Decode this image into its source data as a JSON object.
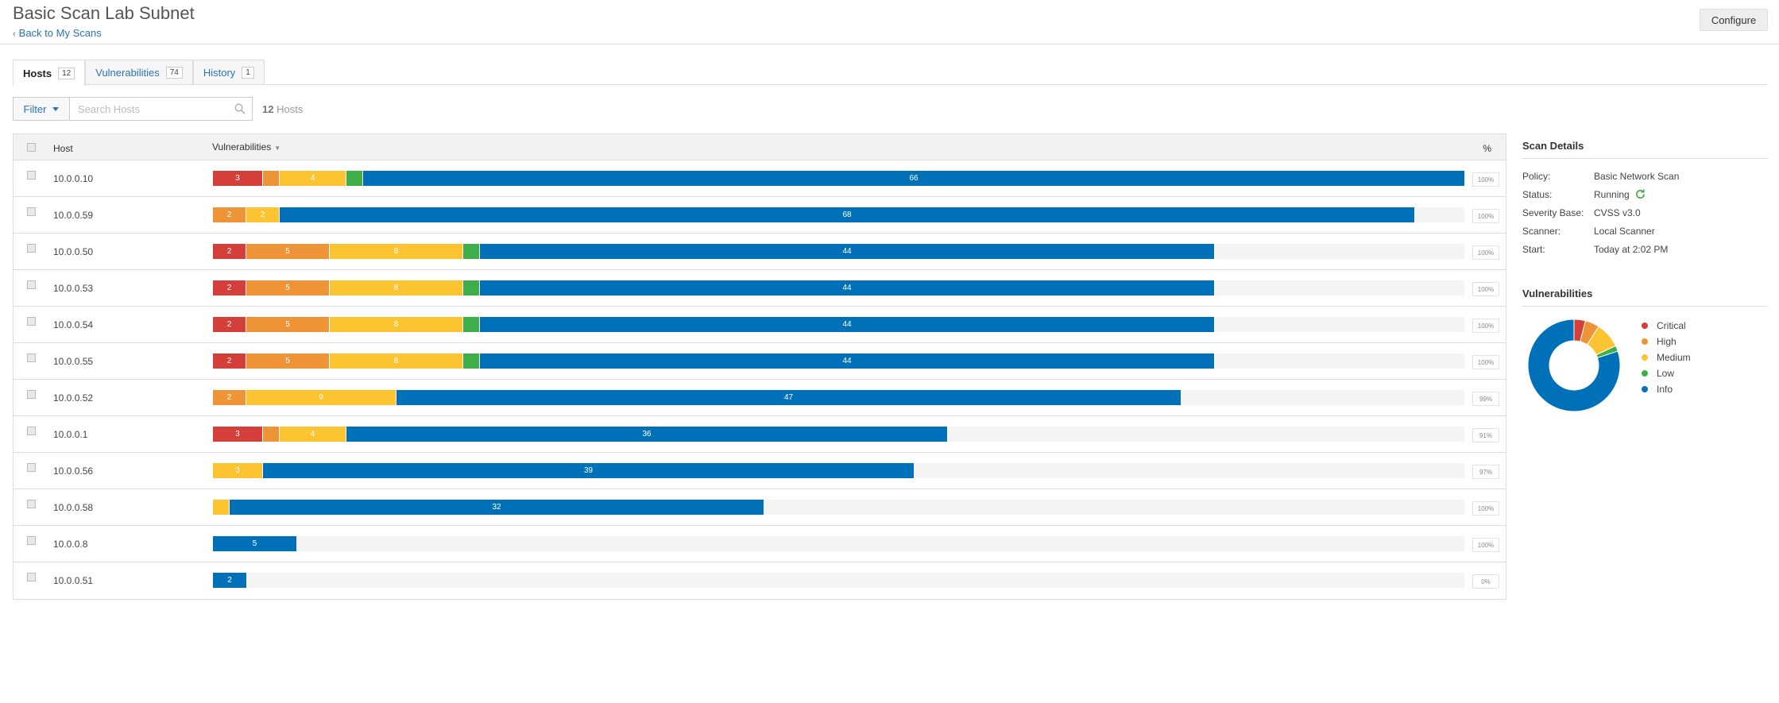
{
  "header": {
    "title": "Basic Scan Lab Subnet",
    "back_label": "Back to My Scans",
    "configure_label": "Configure"
  },
  "tabs": [
    {
      "label": "Hosts",
      "count": "12"
    },
    {
      "label": "Vulnerabilities",
      "count": "74"
    },
    {
      "label": "History",
      "count": "1"
    }
  ],
  "filter": {
    "button_label": "Filter",
    "search_placeholder": "Search Hosts",
    "count_number": "12",
    "count_label": "Hosts"
  },
  "table": {
    "col_host": "Host",
    "col_vulnerabilities": "Vulnerabilities",
    "col_pct": "%",
    "rows": [
      {
        "host": "10.0.0.10",
        "pct": "100%",
        "segments": [
          {
            "sev": "critical",
            "value": 3,
            "label": "3"
          },
          {
            "sev": "high",
            "value": 1,
            "label": ""
          },
          {
            "sev": "medium",
            "value": 4,
            "label": "4"
          },
          {
            "sev": "low",
            "value": 1,
            "label": ""
          },
          {
            "sev": "info",
            "value": 66,
            "label": "66"
          }
        ]
      },
      {
        "host": "10.0.0.59",
        "pct": "100%",
        "segments": [
          {
            "sev": "high",
            "value": 2,
            "label": "2"
          },
          {
            "sev": "medium",
            "value": 2,
            "label": "2"
          },
          {
            "sev": "info",
            "value": 68,
            "label": "68"
          }
        ]
      },
      {
        "host": "10.0.0.50",
        "pct": "100%",
        "segments": [
          {
            "sev": "critical",
            "value": 2,
            "label": "2"
          },
          {
            "sev": "high",
            "value": 5,
            "label": "5"
          },
          {
            "sev": "medium",
            "value": 8,
            "label": "8"
          },
          {
            "sev": "low",
            "value": 1,
            "label": ""
          },
          {
            "sev": "info",
            "value": 44,
            "label": "44"
          }
        ]
      },
      {
        "host": "10.0.0.53",
        "pct": "100%",
        "segments": [
          {
            "sev": "critical",
            "value": 2,
            "label": "2"
          },
          {
            "sev": "high",
            "value": 5,
            "label": "5"
          },
          {
            "sev": "medium",
            "value": 8,
            "label": "8"
          },
          {
            "sev": "low",
            "value": 1,
            "label": ""
          },
          {
            "sev": "info",
            "value": 44,
            "label": "44"
          }
        ]
      },
      {
        "host": "10.0.0.54",
        "pct": "100%",
        "segments": [
          {
            "sev": "critical",
            "value": 2,
            "label": "2"
          },
          {
            "sev": "high",
            "value": 5,
            "label": "5"
          },
          {
            "sev": "medium",
            "value": 8,
            "label": "8"
          },
          {
            "sev": "low",
            "value": 1,
            "label": ""
          },
          {
            "sev": "info",
            "value": 44,
            "label": "44"
          }
        ]
      },
      {
        "host": "10.0.0.55",
        "pct": "100%",
        "segments": [
          {
            "sev": "critical",
            "value": 2,
            "label": "2"
          },
          {
            "sev": "high",
            "value": 5,
            "label": "5"
          },
          {
            "sev": "medium",
            "value": 8,
            "label": "8"
          },
          {
            "sev": "low",
            "value": 1,
            "label": ""
          },
          {
            "sev": "info",
            "value": 44,
            "label": "44"
          }
        ]
      },
      {
        "host": "10.0.0.52",
        "pct": "99%",
        "segments": [
          {
            "sev": "high",
            "value": 2,
            "label": "2"
          },
          {
            "sev": "medium",
            "value": 9,
            "label": "9"
          },
          {
            "sev": "info",
            "value": 47,
            "label": "47"
          }
        ]
      },
      {
        "host": "10.0.0.1",
        "pct": "91%",
        "segments": [
          {
            "sev": "critical",
            "value": 3,
            "label": "3"
          },
          {
            "sev": "high",
            "value": 1,
            "label": ""
          },
          {
            "sev": "medium",
            "value": 4,
            "label": "4"
          },
          {
            "sev": "info",
            "value": 36,
            "label": "36"
          }
        ]
      },
      {
        "host": "10.0.0.56",
        "pct": "97%",
        "segments": [
          {
            "sev": "medium",
            "value": 3,
            "label": "3"
          },
          {
            "sev": "info",
            "value": 39,
            "label": "39"
          }
        ]
      },
      {
        "host": "10.0.0.58",
        "pct": "100%",
        "segments": [
          {
            "sev": "medium",
            "value": 1,
            "label": ""
          },
          {
            "sev": "info",
            "value": 32,
            "label": "32"
          }
        ]
      },
      {
        "host": "10.0.0.8",
        "pct": "100%",
        "segments": [
          {
            "sev": "info",
            "value": 5,
            "label": "5"
          }
        ]
      },
      {
        "host": "10.0.0.51",
        "pct": "0%",
        "segments": [
          {
            "sev": "info",
            "value": 2,
            "label": "2"
          }
        ]
      }
    ]
  },
  "scan_details": {
    "heading": "Scan Details",
    "items": [
      {
        "key": "Policy:",
        "value": "Basic Network Scan"
      },
      {
        "key": "Status:",
        "value": "Running"
      },
      {
        "key": "Severity Base:",
        "value": "CVSS v3.0"
      },
      {
        "key": "Scanner:",
        "value": "Local Scanner"
      },
      {
        "key": "Start:",
        "value": "Today at 2:02 PM"
      }
    ]
  },
  "vulnerabilities_chart": {
    "heading": "Vulnerabilities",
    "legend": [
      {
        "label": "Critical",
        "color": "#d43f3a",
        "value": 4
      },
      {
        "label": "High",
        "color": "#ee9336",
        "value": 5
      },
      {
        "label": "Medium",
        "color": "#fdc431",
        "value": 9
      },
      {
        "label": "Low",
        "color": "#3fae49",
        "value": 2
      },
      {
        "label": "Info",
        "color": "#0071b9",
        "value": 80
      }
    ]
  },
  "colors": {
    "critical": "#d43f3a",
    "high": "#ee9336",
    "medium": "#fdc431",
    "low": "#3fae49",
    "info": "#0071b9",
    "link": "#2a72b8"
  },
  "icons": [
    "chevron-left-icon",
    "caret-down-icon",
    "search-icon",
    "checkbox-icon",
    "sort-icon",
    "refresh-icon"
  ]
}
